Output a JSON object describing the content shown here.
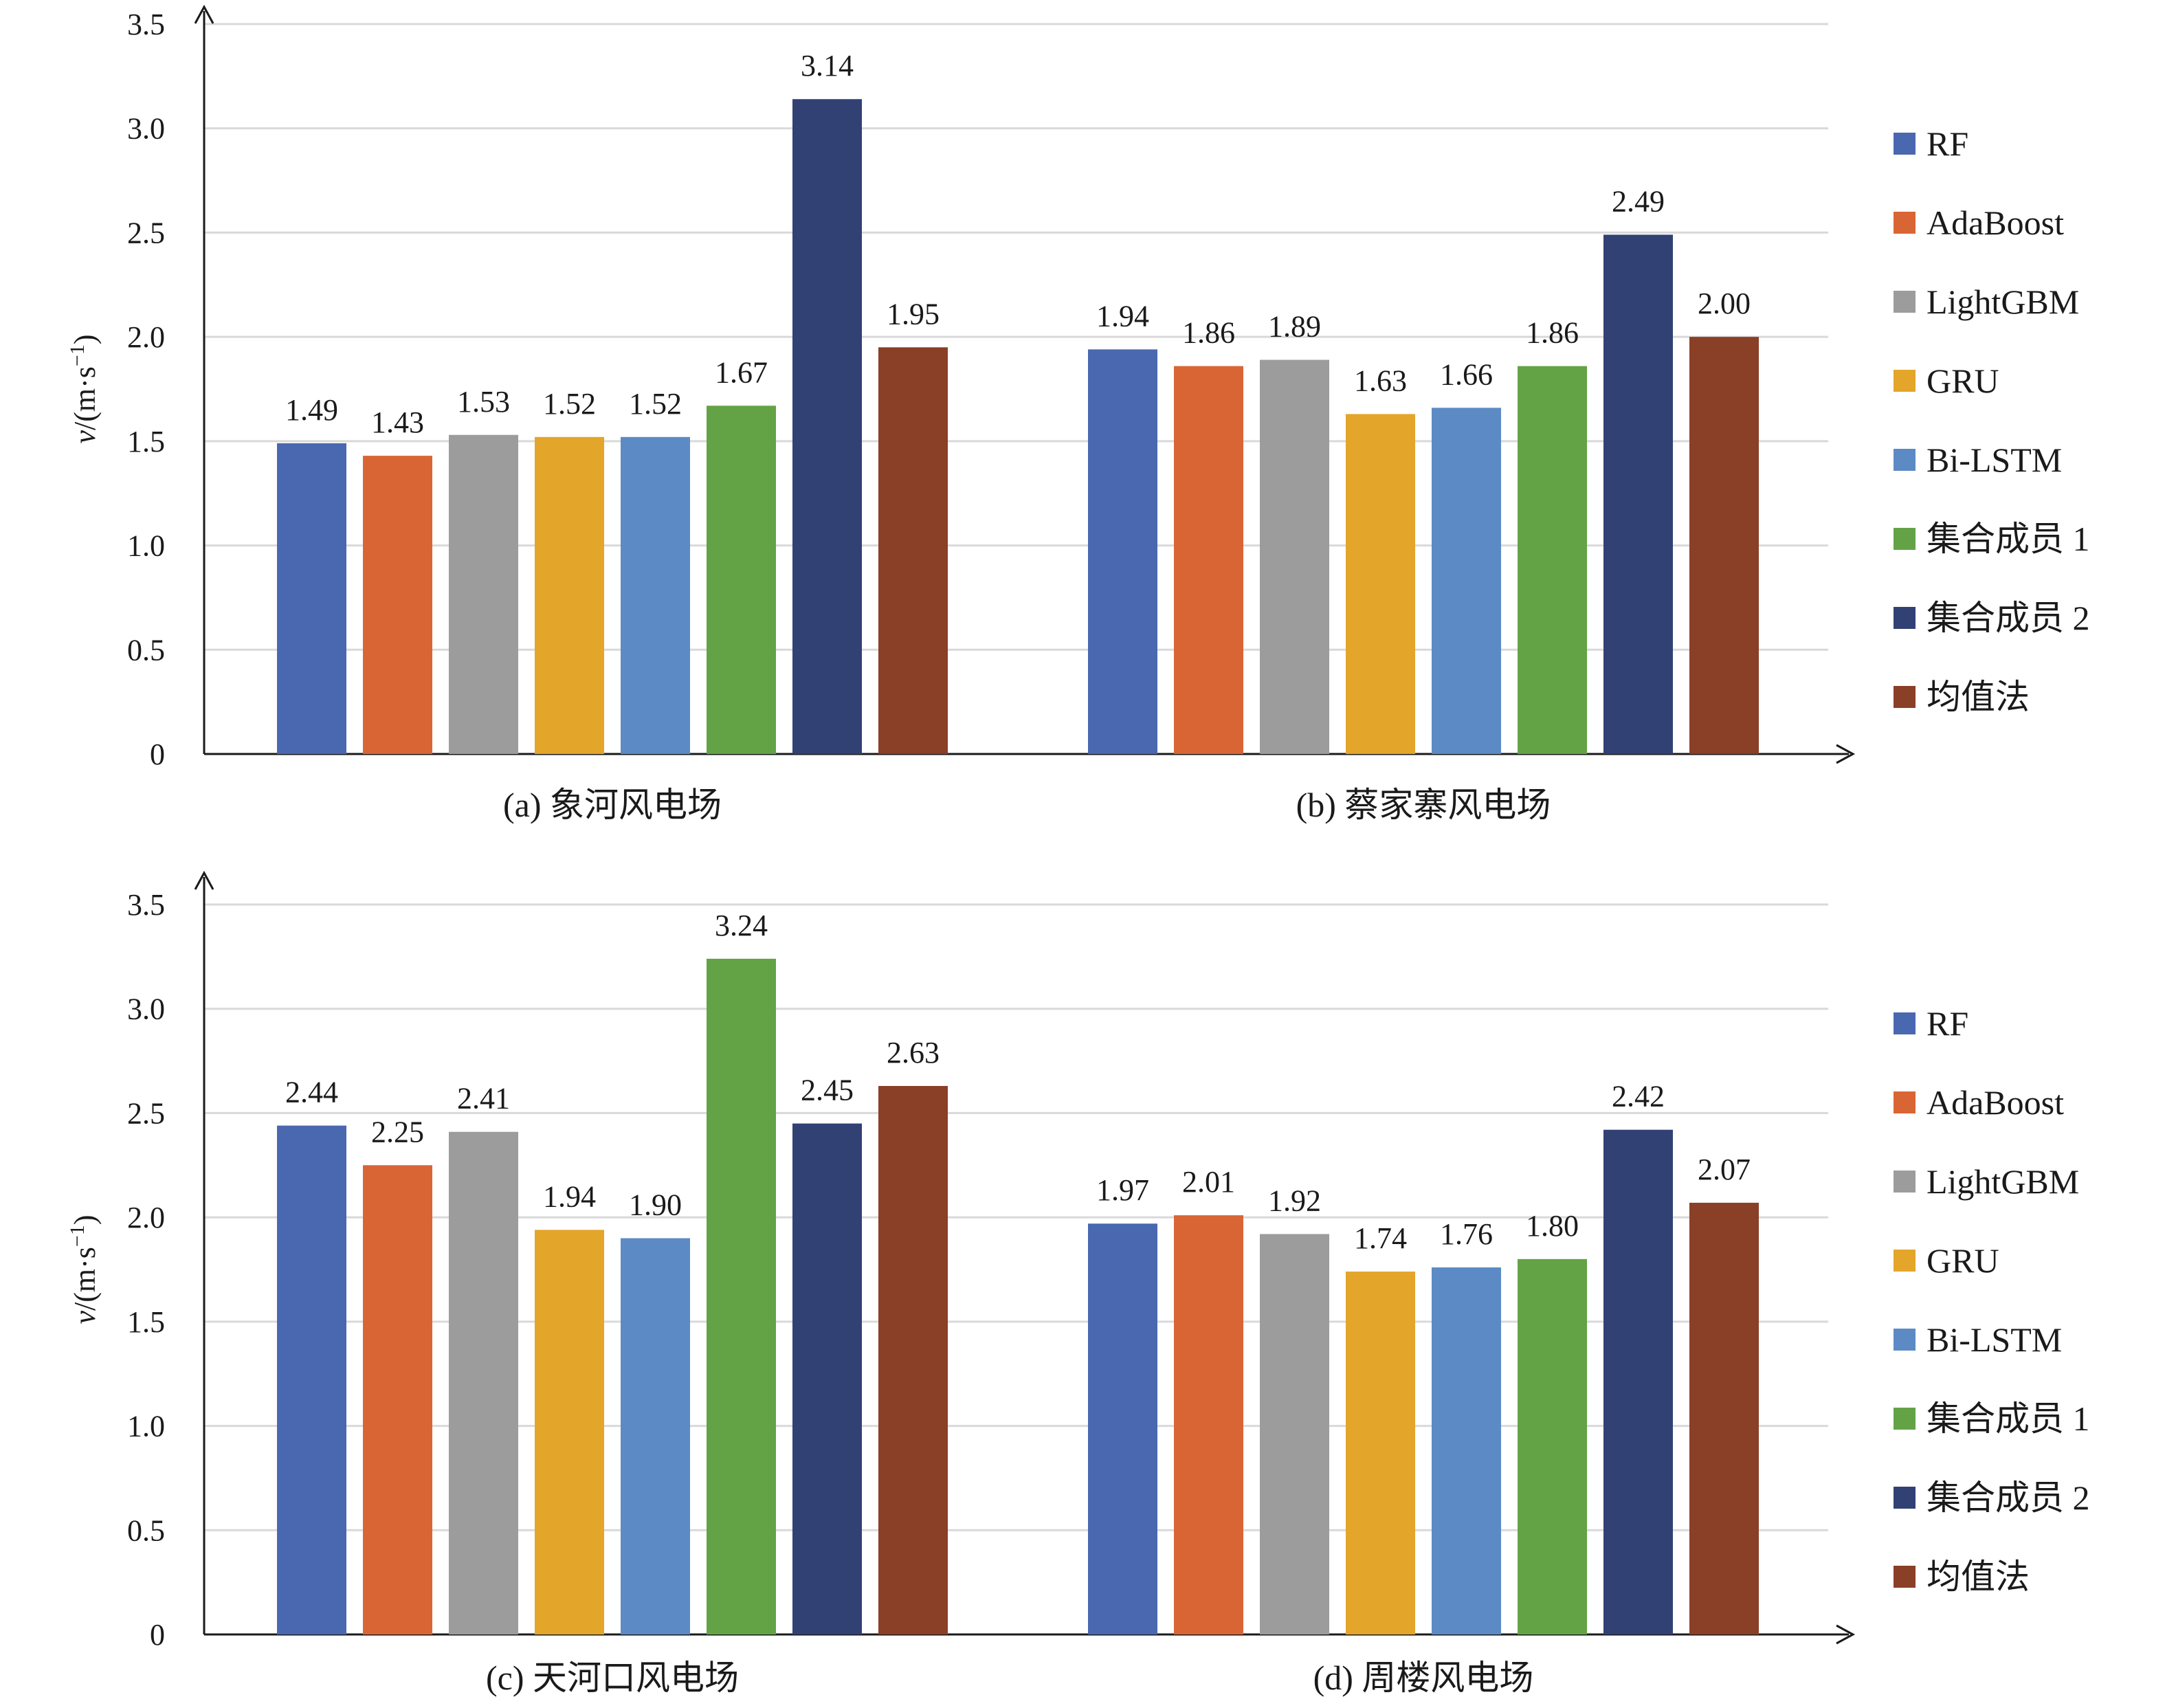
{
  "colors": {
    "RF": "#4a68b0",
    "AdaBoost": "#d96535",
    "LightGBM": "#9c9c9c",
    "GRU": "#e3a52a",
    "Bi-LSTM": "#5c8ac4",
    "集合成员 1": "#63a346",
    "集合成员 2": "#314174",
    "均值法": "#8a3f27",
    "grid": "#d9d9d9",
    "axis": "#1a1a1a"
  },
  "chart_data": [
    {
      "type": "bar",
      "ylabel_italic": "v",
      "ylabel_rest": "/(m·s",
      "ylabel_sup": "−1",
      "ylabel_close": ")",
      "ylim": [
        0,
        3.5
      ],
      "yticks": [
        "0",
        "0.5",
        "1.0",
        "1.5",
        "2.0",
        "2.5",
        "3.0",
        "3.5"
      ],
      "grid": true,
      "legend_position": "right",
      "series_names": [
        "RF",
        "AdaBoost",
        "LightGBM",
        "GRU",
        "Bi-LSTM",
        "集合成员 1",
        "集合成员 2",
        "均值法"
      ],
      "groups": [
        {
          "label": "(a) 象河风电场",
          "values": [
            1.49,
            1.43,
            1.53,
            1.52,
            1.52,
            1.67,
            3.14,
            1.95
          ],
          "value_labels": [
            "1.49",
            "1.43",
            "1.53",
            "1.52",
            "1.52",
            "1.67",
            "3.14",
            "1.95"
          ]
        },
        {
          "label": "(b) 蔡家寨风电场",
          "values": [
            1.94,
            1.86,
            1.89,
            1.63,
            1.66,
            1.86,
            2.49,
            2.0
          ],
          "value_labels": [
            "1.94",
            "1.86",
            "1.89",
            "1.63",
            "1.66",
            "1.86",
            "2.49",
            "2.00"
          ]
        }
      ]
    },
    {
      "type": "bar",
      "ylabel_italic": "v",
      "ylabel_rest": "/(m·s",
      "ylabel_sup": "−1",
      "ylabel_close": ")",
      "ylim": [
        0,
        3.5
      ],
      "yticks": [
        "0",
        "0.5",
        "1.0",
        "1.5",
        "2.0",
        "2.5",
        "3.0",
        "3.5"
      ],
      "grid": true,
      "legend_position": "right",
      "series_names": [
        "RF",
        "AdaBoost",
        "LightGBM",
        "GRU",
        "Bi-LSTM",
        "集合成员 1",
        "集合成员 2",
        "均值法"
      ],
      "groups": [
        {
          "label": "(c) 天河口风电场",
          "values": [
            2.44,
            2.25,
            2.41,
            1.94,
            1.9,
            3.24,
            2.45,
            2.63
          ],
          "value_labels": [
            "2.44",
            "2.25",
            "2.41",
            "1.94",
            "1.90",
            "3.24",
            "2.45",
            "2.63"
          ]
        },
        {
          "label": "(d) 周楼风电场",
          "values": [
            1.97,
            2.01,
            1.92,
            1.74,
            1.76,
            1.8,
            2.42,
            2.07
          ],
          "value_labels": [
            "1.97",
            "2.01",
            "1.92",
            "1.74",
            "1.76",
            "1.80",
            "2.42",
            "2.07"
          ]
        }
      ]
    }
  ]
}
